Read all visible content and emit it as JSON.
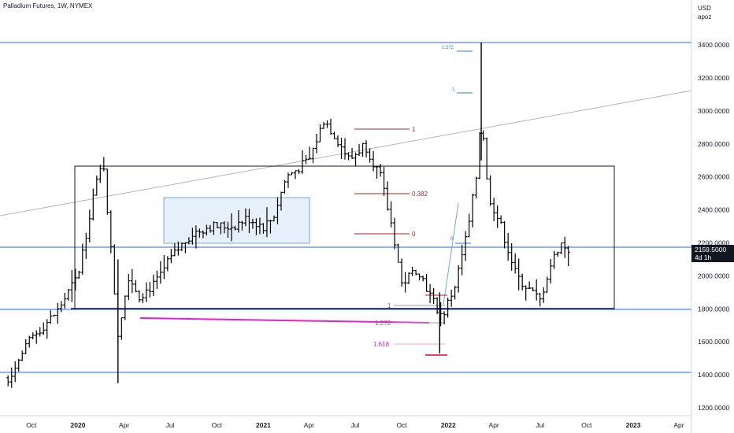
{
  "header": {
    "title": "Palladium Futures, 1W, NYMEX"
  },
  "price_axis": {
    "currency": "USD",
    "scale_mode": "apoz"
  },
  "price_tag": {
    "value": "2159.5000",
    "countdown": "4d 1h"
  },
  "colors": {
    "bars": "#000000",
    "hline": "#2962ff",
    "trend": "#b2b5be",
    "fib": "#9c2a2a",
    "fib_ext": "#2f7bd8",
    "ext_magenta": "#e91ecf",
    "rect_fill": "#e6f0fa",
    "rect_border": "#7aa7d6"
  },
  "chart_data": {
    "type": "ohlc",
    "title": "Palladium Futures, 1W, NYMEX",
    "ylabel": "USD",
    "ylim": [
      1150,
      3550
    ],
    "y_ticks": [
      "3400.0000",
      "3200.0000",
      "3000.0000",
      "2800.0000",
      "2600.0000",
      "2400.0000",
      "2200.0000",
      "2000.0000",
      "1800.0000",
      "1600.0000",
      "1400.0000",
      "1200.0000"
    ],
    "x_ticks": [
      "Oct",
      "2020",
      "Apr",
      "Jul",
      "Oct",
      "2021",
      "Apr",
      "Jul",
      "Oct",
      "2022",
      "Apr",
      "Jul",
      "Oct",
      "2023",
      "Apr"
    ],
    "last_price": 2159.5,
    "horizontal_levels": [
      3415,
      2170,
      1800,
      1415
    ],
    "path_points": [
      [
        "2019-08-16",
        1380
      ],
      [
        "2019-10-01",
        1620
      ],
      [
        "2019-11-20",
        1780
      ],
      [
        "2020-01-01",
        2000
      ],
      [
        "2020-02-01",
        2500
      ],
      [
        "2020-02-20",
        2700
      ],
      [
        "2020-03-20",
        1650
      ],
      [
        "2020-04-10",
        2000
      ],
      [
        "2020-05-01",
        1880
      ],
      [
        "2020-06-01",
        1950
      ],
      [
        "2020-07-01",
        2100
      ],
      [
        "2020-08-10",
        2250
      ],
      [
        "2020-09-15",
        2300
      ],
      [
        "2020-11-01",
        2300
      ],
      [
        "2020-12-01",
        2350
      ],
      [
        "2021-01-01",
        2300
      ],
      [
        "2021-01-20",
        2350
      ],
      [
        "2021-02-15",
        2600
      ],
      [
        "2021-04-01",
        2700
      ],
      [
        "2021-05-01",
        2950
      ],
      [
        "2021-06-01",
        2800
      ],
      [
        "2021-06-20",
        2700
      ],
      [
        "2021-07-20",
        2800
      ],
      [
        "2021-08-20",
        2600
      ],
      [
        "2021-09-15",
        2250
      ],
      [
        "2021-10-01",
        1950
      ],
      [
        "2021-11-01",
        2050
      ],
      [
        "2021-12-01",
        1850
      ],
      [
        "2021-12-20",
        1750
      ],
      [
        "2022-01-15",
        1950
      ],
      [
        "2022-02-10",
        2300
      ],
      [
        "2022-02-25",
        2600
      ],
      [
        "2022-03-07",
        3000
      ],
      [
        "2022-03-20",
        2500
      ],
      [
        "2022-04-15",
        2300
      ],
      [
        "2022-05-15",
        2000
      ],
      [
        "2022-06-15",
        1900
      ],
      [
        "2022-07-01",
        1850
      ],
      [
        "2022-07-20",
        2050
      ],
      [
        "2022-08-10",
        2200
      ],
      [
        "2022-08-26",
        2160
      ]
    ],
    "annotations": {
      "fib_retracement": [
        "1",
        "0.382",
        "0"
      ],
      "fib_extension_upper": [
        "1.272",
        "1",
        "0"
      ],
      "fib_extension_lower": [
        "1",
        "1.272",
        "1.618"
      ]
    },
    "grid": false
  }
}
